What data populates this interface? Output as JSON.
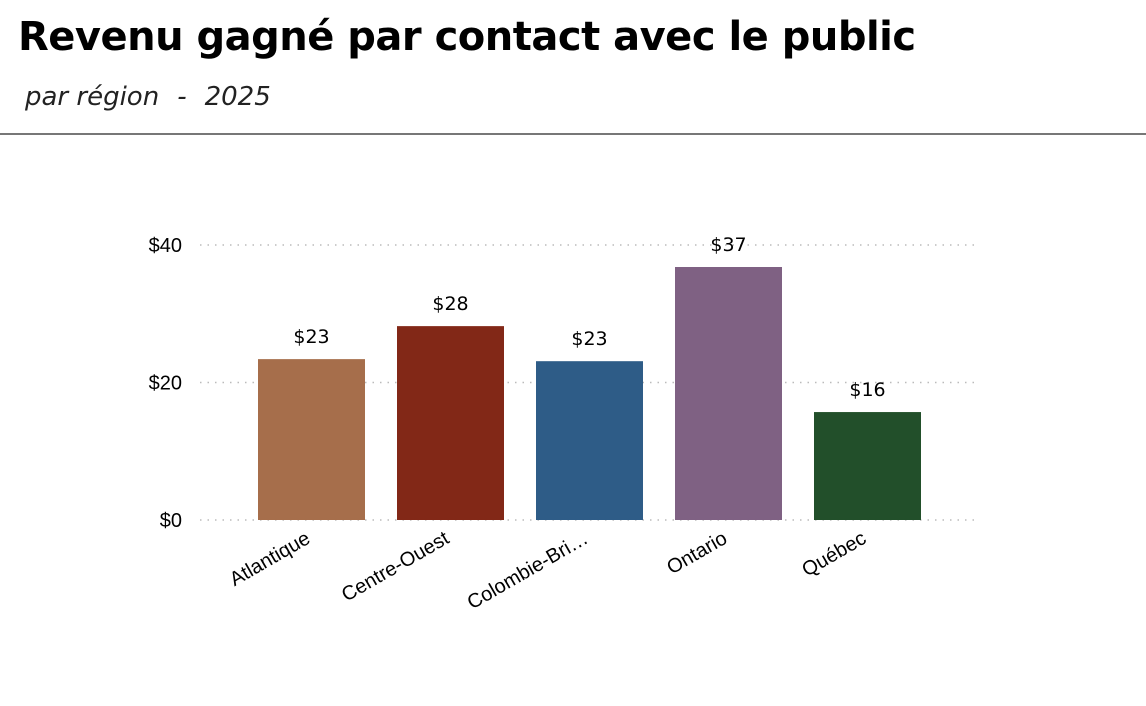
{
  "header": {
    "title": "Revenu gagné par contact avec le public",
    "subtitle": "par région",
    "separator": "-",
    "year": "2025"
  },
  "chart_data": {
    "type": "bar",
    "title": "Revenu gagné par contact avec le public",
    "subtitle": "par région - 2025",
    "categories": [
      "Atlantique",
      "Centre-Ouest",
      "Colombie-Bri…",
      "Ontario",
      "Québec"
    ],
    "values": [
      23.4,
      28.2,
      23.1,
      36.8,
      15.7
    ],
    "data_labels": [
      "$23",
      "$28",
      "$23",
      "$37",
      "$16"
    ],
    "colors": [
      "#a66e4b",
      "#822817",
      "#2e5c87",
      "#7f6183",
      "#224f2a"
    ],
    "yticks": [
      0,
      20,
      40
    ],
    "ytick_labels": [
      "$0",
      "$20",
      "$40"
    ],
    "ylim": [
      0,
      40
    ],
    "grid": true,
    "xlabel": "",
    "ylabel": ""
  }
}
